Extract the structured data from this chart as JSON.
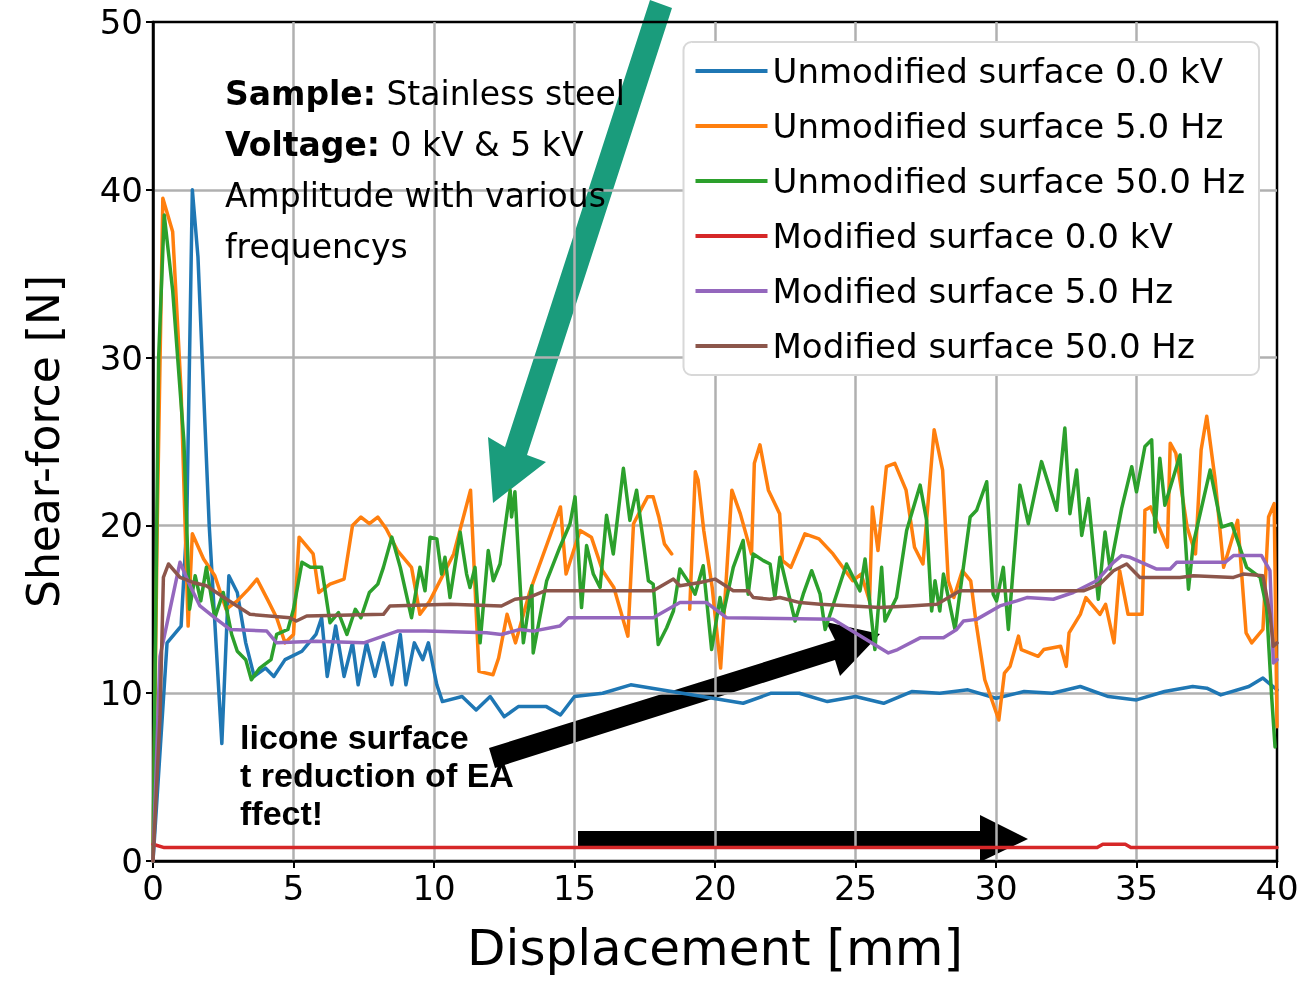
{
  "chart_data": {
    "type": "line",
    "xlabel": "Displacement [mm]",
    "ylabel": "Shear-force [N]",
    "xlim": [
      0,
      40
    ],
    "xticks": [
      0,
      5,
      10,
      15,
      20,
      25,
      30,
      35,
      40
    ],
    "ylim": [
      0,
      50
    ],
    "yticks": [
      0,
      10,
      20,
      30,
      40,
      50
    ],
    "grid": true,
    "legend": "top right",
    "marker": "none",
    "line_style": "solid",
    "annotations": [
      "Sample: Stainless steel",
      "Voltage: 0 kV & 5 kV",
      "Amplitude with various frequencys",
      "licone surface",
      "t reduction of EA",
      "ffect!"
    ],
    "series": [
      {
        "name": "Unmodified surface 0.0 kV",
        "color": "#1f77b4",
        "x": [
          0,
          0.5,
          1.0,
          1.2,
          1.4,
          1.6,
          2.0,
          2.45,
          2.7,
          3.0,
          3.3,
          3.6,
          4.0,
          4.3,
          4.7,
          5.3,
          5.8,
          6.0,
          6.2,
          6.5,
          6.8,
          7.1,
          7.3,
          7.6,
          7.9,
          8.2,
          8.5,
          8.8,
          9.0,
          9.3,
          9.6,
          9.8,
          10.1,
          10.3,
          11,
          11.5,
          12,
          12.5,
          13,
          14,
          14.5,
          15,
          16,
          17,
          21,
          22,
          23,
          24,
          25,
          26,
          27,
          28,
          29,
          30,
          31,
          32,
          33,
          34,
          35,
          36,
          37,
          37.5,
          38,
          39,
          39.5,
          40
        ],
        "values": [
          0,
          13,
          14,
          20,
          40,
          36,
          20,
          7,
          17,
          16,
          13,
          11,
          11.5,
          11,
          12,
          12.5,
          13.5,
          14.5,
          11,
          14,
          11,
          13,
          10.5,
          13,
          11,
          13,
          10.5,
          13.5,
          10.5,
          13,
          12,
          13,
          10.5,
          9.5,
          9.8,
          9.0,
          9.8,
          8.6,
          9.2,
          9.2,
          8.7,
          9.8,
          10,
          10.5,
          9.4,
          10,
          10,
          9.5,
          9.8,
          9.4,
          10.1,
          10,
          10.2,
          9.7,
          10.1,
          10,
          10.4,
          9.8,
          9.6,
          10.1,
          10.4,
          10.3,
          9.9,
          10.4,
          10.9,
          10.2
        ]
      },
      {
        "name": "Unmodified surface 5.0 Hz",
        "color": "#ff7f0e",
        "x": [
          0,
          0.15,
          0.35,
          0.7,
          1.0,
          1.25,
          1.4,
          1.8,
          2.2,
          2.6,
          3.0,
          3.4,
          3.7,
          4.1,
          4.4,
          4.7,
          5.0,
          5.2,
          5.7,
          5.9,
          6.3,
          6.8,
          7.1,
          7.4,
          7.7,
          8.0,
          8.3,
          8.7,
          9.2,
          9.5,
          9.85,
          10.7,
          11.3,
          11.6,
          12.1,
          12.3,
          12.6,
          12.9,
          13.4,
          14.5,
          14.7,
          15.2,
          15.6,
          16.0,
          16.4,
          16.9,
          17.1,
          17.6,
          17.8,
          18.0,
          18.2,
          18.46,
          18.8,
          19.1,
          19.3,
          19.4,
          19.6,
          19.9,
          20.2,
          20.6,
          20.9,
          21.3,
          21.4,
          21.6,
          21.9,
          22.3,
          22.4,
          22.7,
          23.2,
          23.7,
          24.2,
          24.9,
          25.2,
          25.5,
          25.6,
          25.8,
          26.1,
          26.4,
          26.8,
          27.1,
          27.4,
          27.8,
          28.1,
          28.3,
          28.5,
          28.8,
          29.1,
          29.3,
          29.6,
          30.1,
          30.3,
          30.5,
          30.8,
          30.9,
          31.5,
          31.7,
          32.3,
          32.5,
          32.6,
          33.0,
          33.2,
          33.7,
          33.9,
          34.2,
          34.4,
          34.7,
          35.2,
          35.3,
          35.5,
          35.8,
          36.1,
          36.2,
          36.4,
          36.8,
          37.1,
          37.3,
          37.5,
          37.8,
          38.1,
          38.6,
          38.9,
          39.1,
          39.5,
          39.7,
          39.9,
          40
        ],
        "values": [
          0,
          20,
          39.5,
          37.5,
          28,
          14,
          19.5,
          18,
          17,
          15,
          15.5,
          16.2,
          16.8,
          15.5,
          14.5,
          13,
          13.5,
          19.3,
          18.3,
          16,
          16.5,
          16.8,
          20,
          20.5,
          20.1,
          20.5,
          19.8,
          18.5,
          17.5,
          14.7,
          15.5,
          18.3,
          22.1,
          11.3,
          11.1,
          12.1,
          14.7,
          13,
          16,
          21.1,
          17.1,
          19.7,
          19.3,
          17.3,
          16.3,
          13.4,
          20.1,
          21.7,
          21.7,
          20.5,
          18.9,
          18.3,
          null,
          15,
          23.2,
          22.7,
          19.7,
          16.3,
          11.5,
          22.1,
          20.7,
          18.3,
          23.7,
          24.8,
          22.1,
          20.7,
          17.9,
          17.5,
          19.5,
          19.2,
          18.3,
          16.7,
          17.1,
          15.5,
          21.1,
          18.5,
          23.5,
          23.7,
          22.1,
          18.7,
          17.7,
          25.7,
          23.3,
          16.7,
          15.7,
          17.3,
          16.7,
          14.1,
          10.8,
          8.4,
          11.2,
          11.6,
          13.4,
          12.6,
          12.2,
          12.6,
          12.8,
          11.6,
          13.6,
          14.7,
          15.7,
          14.7,
          15.3,
          13.0,
          17.3,
          14.7,
          14.7,
          20.9,
          21.1,
          19.9,
          18.7,
          24.9,
          24.3,
          19.9,
          18.3,
          24.5,
          26.5,
          22.7,
          17.5,
          20.3,
          13.6,
          13,
          13.8,
          20.5,
          21.3,
          8
        ]
      },
      {
        "name": "Unmodified surface 50.0 Hz",
        "color": "#2ca02c",
        "x": [
          0,
          0.2,
          0.4,
          0.7,
          1.1,
          1.3,
          1.5,
          1.7,
          1.9,
          2.2,
          2.5,
          2.8,
          3.0,
          3.3,
          3.5,
          3.8,
          4.2,
          4.4,
          4.8,
          5.0,
          5.3,
          5.6,
          6.0,
          6.3,
          6.6,
          6.9,
          7.2,
          7.4,
          7.7,
          8.0,
          8.2,
          8.5,
          8.8,
          9.2,
          9.5,
          9.68,
          9.86,
          10.1,
          10.27,
          10.39,
          10.57,
          10.93,
          11.16,
          11.28,
          11.46,
          11.64,
          11.93,
          12.11,
          12.35,
          12.71,
          12.76,
          12.88,
          13.18,
          13.48,
          13.53,
          14.01,
          14.48,
          14.84,
          15.02,
          15.25,
          15.43,
          15.67,
          15.91,
          16.14,
          16.38,
          16.74,
          16.97,
          17.21,
          17.63,
          17.8,
          17.98,
          18.28,
          18.52,
          18.75,
          19.11,
          19.29,
          19.58,
          19.88,
          20.18,
          20.29,
          20.65,
          21.0,
          21.18,
          21.36,
          21.72,
          21.96,
          22.13,
          22.31,
          22.85,
          23.14,
          23.44,
          23.74,
          23.92,
          24.68,
          25.16,
          25.34,
          25.69,
          25.93,
          26.05,
          26.46,
          26.82,
          27.3,
          27.53,
          27.71,
          27.83,
          28.0,
          28.13,
          28.54,
          29.08,
          29.31,
          29.67,
          29.9,
          30.02,
          30.26,
          30.44,
          30.85,
          31.15,
          31.62,
          32.16,
          32.45,
          32.63,
          32.87,
          33.05,
          33.29,
          33.64,
          33.88,
          34.06,
          34.47,
          34.83,
          35.0,
          35.3,
          35.54,
          35.66,
          35.83,
          36.01,
          36.55,
          36.85,
          37.02,
          37.62,
          38.03,
          38.39,
          38.92,
          39.4,
          39.63,
          39.81,
          39.93
        ],
        "values": [
          0,
          30,
          38.5,
          34,
          25,
          15,
          17,
          15.5,
          17.5,
          14.5,
          16,
          13.5,
          12.5,
          12,
          10.8,
          11.5,
          12,
          13.5,
          13.8,
          15,
          17.8,
          17.5,
          17.5,
          14.2,
          14.8,
          13.5,
          15,
          14.5,
          16,
          16.5,
          17.5,
          19.3,
          17.5,
          14.5,
          17.5,
          16.1,
          19.3,
          19.2,
          17.1,
          18.1,
          15.7,
          19.6,
          17.1,
          16.3,
          17.5,
          13.0,
          18.5,
          16.7,
          17.7,
          22.1,
          20.5,
          22.0,
          13.0,
          16.4,
          12.4,
          16.7,
          18.7,
          20.1,
          21.7,
          15.1,
          18.8,
          17.1,
          16.3,
          20.6,
          18.3,
          23.4,
          20.3,
          22.1,
          16.7,
          16.5,
          12.9,
          13.9,
          14.9,
          17.4,
          16.5,
          15.9,
          17.6,
          12.6,
          15.7,
          14.7,
          17.5,
          19.1,
          15.9,
          18.3,
          17.9,
          17.7,
          15.7,
          18.1,
          14.3,
          15.9,
          17.3,
          15.9,
          13.8,
          17.7,
          16.1,
          18.0,
          12.6,
          17.5,
          14.3,
          15.7,
          19.7,
          22.4,
          20.3,
          14.9,
          16.7,
          14.9,
          17.1,
          13.8,
          20.5,
          20.9,
          22.6,
          15.9,
          15.5,
          17.5,
          13.8,
          22.4,
          20.1,
          23.8,
          20.9,
          25.8,
          20.7,
          23.3,
          19.4,
          21.6,
          15.6,
          19.6,
          17.4,
          21.0,
          23.5,
          22.0,
          24.7,
          25.1,
          19.6,
          24.0,
          21.2,
          24.2,
          16.2,
          18.9,
          23.3,
          19.9,
          20.1,
          17.5,
          16.9,
          15.1,
          9.8,
          6.8
        ]
      },
      {
        "name": "Modified surface 0.0 kV",
        "color": "#d62728",
        "x": [
          0,
          0.4,
          33.6,
          33.8,
          34.6,
          34.8,
          40
        ],
        "values": [
          1,
          0.8,
          0.8,
          1.0,
          1.0,
          0.8,
          0.8
        ]
      },
      {
        "name": "Modified surface 5.0 Hz",
        "color": "#9467bd",
        "x": [
          0,
          0.25,
          0.96,
          1.32,
          1.67,
          2.27,
          2.74,
          4.05,
          4.4,
          5.8,
          7.5,
          8.7,
          9.7,
          11.87,
          12.4,
          13.06,
          13.53,
          14.48,
          14.78,
          17.8,
          18.75,
          19.7,
          20.41,
          24.2,
          26.17,
          26.5,
          27.3,
          28.13,
          28.6,
          28.84,
          29.31,
          30.14,
          30.74,
          31.1,
          32.04,
          32.75,
          33.58,
          34.18,
          34.47,
          34.77,
          35.72,
          36.2,
          36.43,
          38.15,
          38.45,
          39.45,
          39.75,
          39.87,
          40
        ],
        "values": [
          0,
          12.2,
          17.8,
          16.4,
          15.2,
          14.4,
          13.8,
          13.7,
          13.0,
          13.1,
          13.0,
          13.7,
          13.7,
          13.6,
          13.5,
          13.8,
          13.7,
          14.0,
          14.5,
          14.5,
          15.4,
          15.4,
          14.5,
          14.4,
          12.4,
          12.6,
          13.3,
          13.3,
          13.8,
          14.3,
          14.4,
          15.2,
          15.5,
          15.7,
          15.6,
          16.0,
          16.7,
          17.8,
          18.2,
          18.1,
          17.4,
          17.4,
          17.8,
          17.8,
          18.2,
          18.2,
          17.3,
          11.8,
          12
        ]
      },
      {
        "name": "Modified surface 50.0 Hz",
        "color": "#8c564b",
        "x": [
          0,
          0.25,
          0.37,
          0.55,
          0.96,
          1.43,
          1.9,
          2.62,
          3.45,
          4.87,
          5.1,
          5.47,
          8.2,
          8.43,
          10.57,
          12.4,
          12.88,
          13.36,
          13.95,
          17.8,
          18.52,
          18.75,
          19.47,
          20.0,
          20.65,
          21.18,
          21.36,
          21.96,
          22.31,
          23.02,
          23.74,
          25.87,
          26.94,
          27.9,
          28.72,
          33.11,
          33.7,
          34.18,
          34.65,
          35.12,
          36.55,
          37.02,
          38.45,
          38.8,
          39.5,
          39.75,
          39.87,
          40
        ],
        "values": [
          0,
          8.6,
          16.9,
          17.7,
          16.9,
          16.6,
          16.4,
          15.6,
          14.7,
          14.5,
          14.3,
          14.6,
          14.7,
          15.2,
          15.3,
          15.2,
          15.6,
          15.7,
          16.1,
          16.1,
          16.8,
          16.4,
          16.6,
          16.8,
          16.1,
          16.1,
          15.7,
          15.6,
          15.7,
          15.4,
          15.3,
          15.1,
          15.2,
          15.3,
          16.1,
          16.1,
          16.5,
          17.3,
          17.7,
          16.9,
          16.9,
          17.0,
          16.9,
          17.1,
          17.0,
          14.7,
          12.8,
          13
        ]
      }
    ]
  }
}
